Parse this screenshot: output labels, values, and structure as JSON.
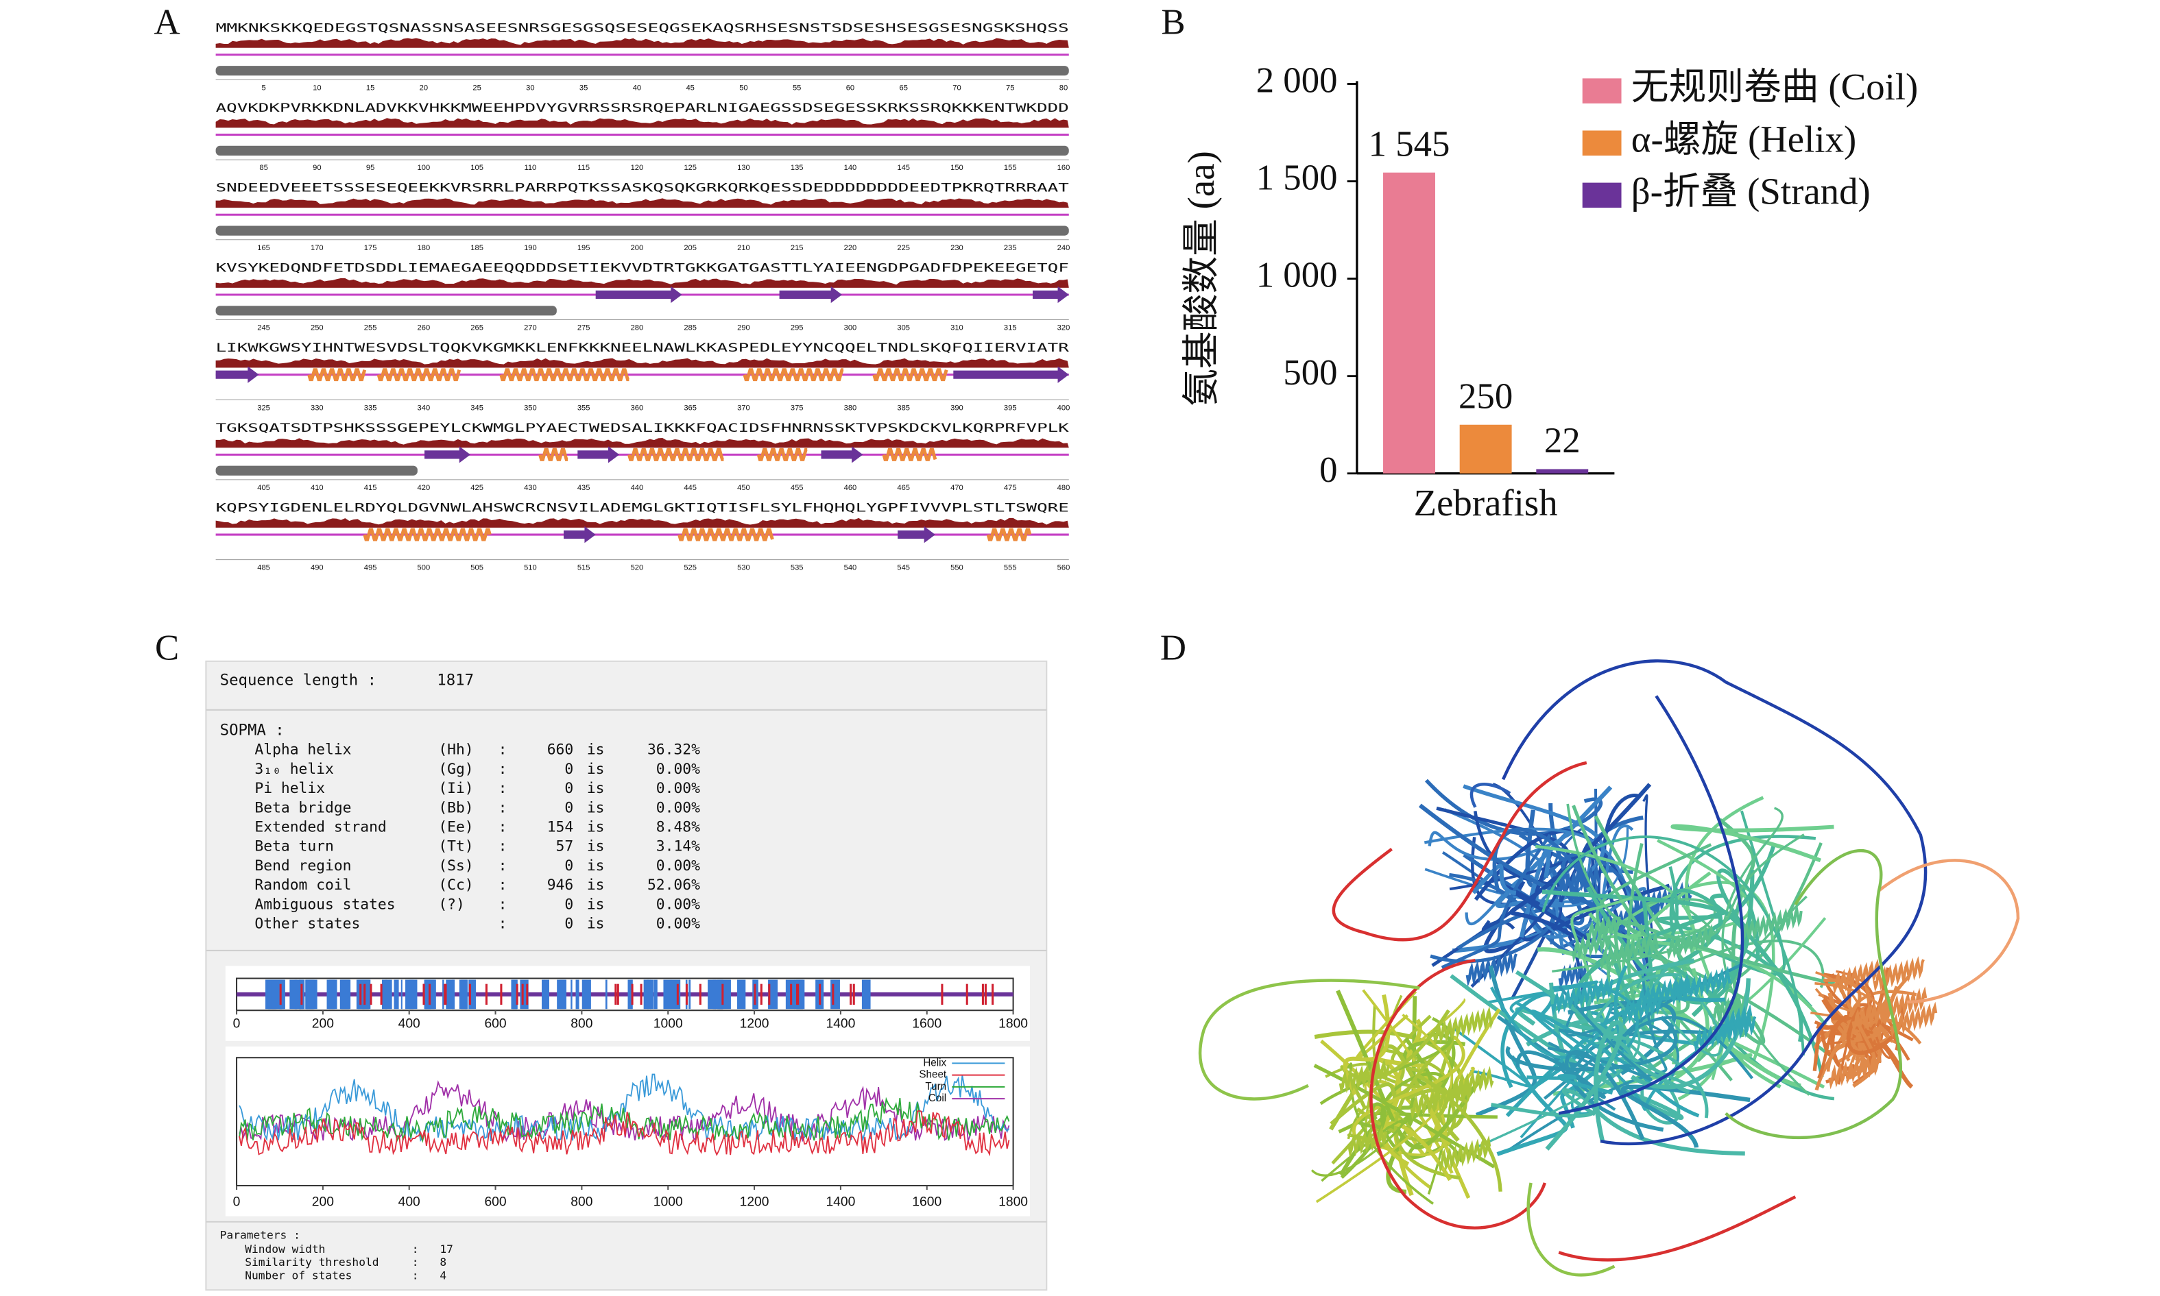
{
  "panel_labels": [
    "A",
    "B",
    "C",
    "D"
  ],
  "sequence_panel": {
    "rows": [
      {
        "sequence": "MMKNKSKKQEDEGSTQSNASSNSASEESNRSGESGSQSESEQGSEKAQSRHSESNSTSDSESHSESGSESNGSKSHQSS",
        "positions": [
          5,
          10,
          15,
          20,
          25,
          30,
          35,
          40,
          45,
          50,
          55,
          60,
          65,
          70,
          75,
          80
        ]
      },
      {
        "sequence": "AQVKDKPVRKKDNLADVKKVHKKMWEEHPDVYGVRRSSRSRQEPARLNIGAEGSSDSEGESSKRKSSRQKKKENTWKDDD",
        "positions": [
          85,
          90,
          95,
          100,
          105,
          110,
          115,
          120,
          125,
          130,
          135,
          140,
          145,
          150,
          155,
          160
        ]
      },
      {
        "sequence": "SNDEEDVEEETSSSESEQEEKKVRSRRLPARRPQTKSSASKQSQKGRKQRKQESSDEDDDDDDDDEEDTPKRQTRRRAAT",
        "positions": [
          165,
          170,
          175,
          180,
          185,
          190,
          195,
          200,
          205,
          210,
          215,
          220,
          225,
          230,
          235,
          240
        ]
      },
      {
        "sequence": "KVSYKEDQNDFETDSDDLIEMAEGAEEQQDDDSETIEKVVDTRTGKKGATGASTTLYAIEENGDPGADFDPEKEEGETQF",
        "positions": [
          245,
          250,
          255,
          260,
          265,
          270,
          275,
          280,
          285,
          290,
          295,
          300,
          305,
          310,
          315,
          320
        ]
      },
      {
        "sequence": "LIKWKGWSYIHNTWESVDSLTQQKVKGMKKLENFKKKNEELNAWLKKASPEDLEYYNCQQELTNDLSKQFQIIERVIATR",
        "positions": [
          325,
          330,
          335,
          340,
          345,
          350,
          355,
          360,
          365,
          370,
          375,
          380,
          385,
          390,
          395,
          400
        ]
      },
      {
        "sequence": "TGKSQATSDTPSHKSSSGEPEYLCKWMGLPYAECTWEDSALIKKKFQACIDSFHNRNSSKTVPSKDCKVLKQRPRFVPLK",
        "positions": [
          405,
          410,
          415,
          420,
          425,
          430,
          435,
          440,
          445,
          450,
          455,
          460,
          465,
          470,
          475,
          480
        ]
      },
      {
        "sequence": "KQPSYIGDENLELRDYQLDGVNWLAHSWCRCNSVILADEMGLGKTIQTISFLSYLFHQHQLYGPFIVVVPLSTLTSWQRE",
        "positions": [
          485,
          490,
          495,
          500,
          505,
          510,
          515,
          520,
          525,
          530,
          535,
          540,
          545,
          550,
          555,
          560
        ]
      }
    ]
  },
  "chart_data": {
    "type": "bar",
    "y_label": "氨基酸数量 (aa)",
    "categories": [
      "Zebrafish"
    ],
    "series": [
      {
        "name": "无规则卷曲 (Coil)",
        "color": "#e97c93",
        "values": [
          1545
        ],
        "value_labels": [
          "1 545"
        ]
      },
      {
        "name": "α-螺旋 (Helix)",
        "color": "#ec8a3c",
        "values": [
          250
        ]
      },
      {
        "name": "β-折叠 (Strand)",
        "color": "#6a3399",
        "values": [
          22
        ]
      }
    ],
    "ylim": [
      0,
      2000
    ],
    "yticks": [
      0,
      500,
      {
        "value": 1000,
        "label": "1 000"
      },
      {
        "value": 1500,
        "label": "1 500"
      },
      {
        "value": 2000,
        "label": "2 000"
      }
    ],
    "grid": false,
    "legend": "right"
  },
  "sopma": {
    "length_label": "Sequence length :",
    "length": 1817,
    "method": "SOPMA :",
    "rows": [
      [
        "Alpha helix",
        "(Hh)",
        ":",
        "660",
        "is",
        "36.32%"
      ],
      [
        "3₁₀ helix",
        "(Gg)",
        ":",
        "0",
        "is",
        "0.00%"
      ],
      [
        "Pi helix",
        "(Ii)",
        ":",
        "0",
        "is",
        "0.00%"
      ],
      [
        "Beta bridge",
        "(Bb)",
        ":",
        "0",
        "is",
        "0.00%"
      ],
      [
        "Extended strand",
        "(Ee)",
        ":",
        "154",
        "is",
        "8.48%"
      ],
      [
        "Beta turn",
        "(Tt)",
        ":",
        "57",
        "is",
        "3.14%"
      ],
      [
        "Bend region",
        "(Ss)",
        ":",
        "0",
        "is",
        "0.00%"
      ],
      [
        "Random coil",
        "(Cc)",
        ":",
        "946",
        "is",
        "52.06%"
      ],
      [
        "Ambiguous states",
        "(?)",
        ":",
        "0",
        "is",
        "0.00%"
      ],
      [
        "Other states",
        "",
        ":",
        "0",
        "is",
        "0.00%"
      ]
    ],
    "track_ticks": [
      0,
      200,
      400,
      600,
      800,
      1000,
      1200,
      1400,
      1600,
      1800
    ],
    "profile_ticks": [
      0,
      200,
      400,
      600,
      800,
      1000,
      1200,
      1400,
      1600,
      1800
    ],
    "plot_legend": [
      "Helix",
      "Sheet",
      "Turn",
      "Coil"
    ],
    "parameters_title": "Parameters :",
    "parameters": [
      [
        "Window width",
        ":",
        "17"
      ],
      [
        "Similarity threshold",
        ":",
        "8"
      ],
      [
        "Number of states",
        ":",
        "4"
      ]
    ]
  }
}
